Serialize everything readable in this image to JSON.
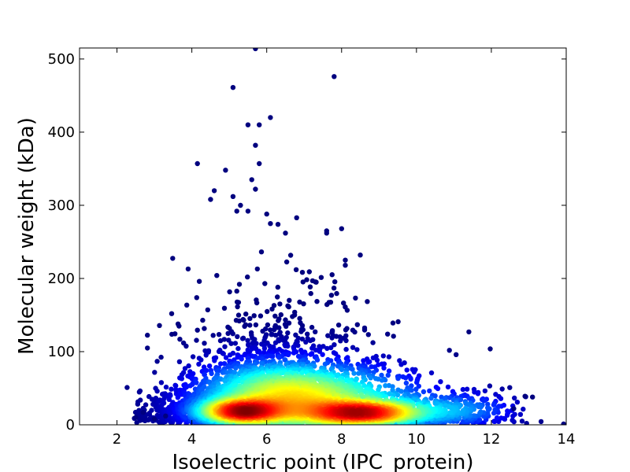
{
  "chart_data": {
    "type": "scatter",
    "title": "",
    "xlabel": "Isoelectric point (IPC_protein)",
    "ylabel": "Molecular weight (kDa)",
    "xlim": [
      1,
      14
    ],
    "ylim": [
      0,
      515
    ],
    "xticks": [
      2,
      4,
      6,
      8,
      10,
      12,
      14
    ],
    "yticks": [
      0,
      100,
      200,
      300,
      400,
      500
    ],
    "grid": false,
    "legend": "none",
    "colormap": [
      "#00007f",
      "#0000ff",
      "#007fff",
      "#00ffff",
      "#7fff7f",
      "#ffff00",
      "#ff7f00",
      "#ff0000",
      "#7f0000"
    ],
    "density_clusters": [
      {
        "x": 5.3,
        "y": 18,
        "sx": 0.7,
        "sy": 10,
        "density": 1.0
      },
      {
        "x": 8.6,
        "y": 16,
        "sx": 1.0,
        "sy": 10,
        "density": 1.0
      },
      {
        "x": 6.2,
        "y": 40,
        "sx": 1.3,
        "sy": 30,
        "density": 0.55
      },
      {
        "x": 7.8,
        "y": 35,
        "sx": 1.6,
        "sy": 28,
        "density": 0.45
      },
      {
        "x": 11.2,
        "y": 20,
        "sx": 0.9,
        "sy": 14,
        "density": 0.25
      }
    ],
    "outliers": [
      [
        5.7,
        514
      ],
      [
        5.1,
        461
      ],
      [
        7.8,
        476
      ],
      [
        6.1,
        420
      ],
      [
        5.5,
        410
      ],
      [
        5.8,
        410
      ],
      [
        5.7,
        382
      ],
      [
        4.15,
        357
      ],
      [
        5.8,
        357
      ],
      [
        4.9,
        348
      ],
      [
        5.6,
        335
      ],
      [
        5.1,
        312
      ],
      [
        5.7,
        322
      ],
      [
        4.6,
        320
      ],
      [
        4.5,
        308
      ],
      [
        5.3,
        300
      ],
      [
        6.0,
        288
      ],
      [
        6.8,
        283
      ],
      [
        5.5,
        292
      ],
      [
        5.2,
        292
      ],
      [
        7.6,
        265
      ],
      [
        7.6,
        262
      ],
      [
        8.0,
        268
      ],
      [
        6.5,
        262
      ],
      [
        6.3,
        274
      ],
      [
        6.1,
        275
      ],
      [
        3.9,
        213
      ],
      [
        8.1,
        225
      ],
      [
        8.1,
        218
      ],
      [
        8.5,
        232
      ],
      [
        4.2,
        196
      ],
      [
        11.4,
        127
      ],
      [
        12.9,
        39
      ],
      [
        13.1,
        38
      ],
      [
        12.6,
        22
      ],
      [
        2.5,
        10
      ],
      [
        2.7,
        17
      ],
      [
        3.0,
        8
      ],
      [
        3.3,
        12
      ]
    ]
  }
}
